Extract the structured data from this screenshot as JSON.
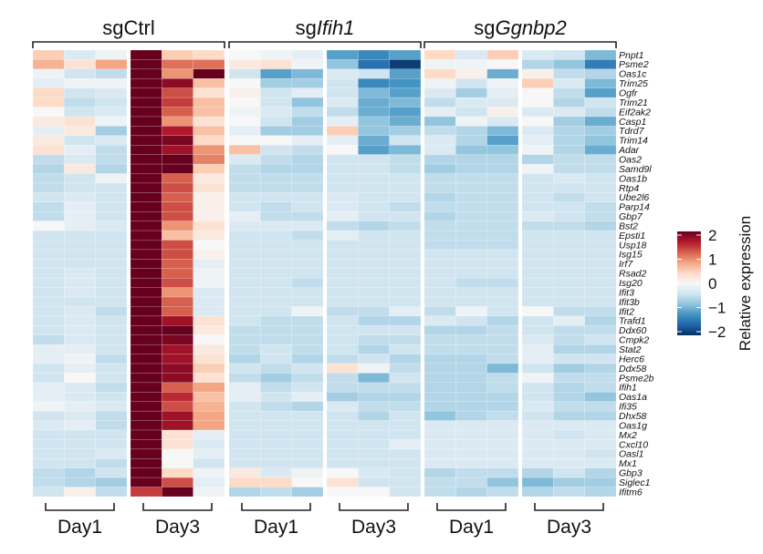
{
  "chart_data": {
    "type": "heatmap",
    "colorbar": {
      "title": "Relative expression",
      "range": [
        -2,
        2
      ],
      "ticks": [
        "2",
        "1",
        "0",
        "−1",
        "−2"
      ],
      "tick_values": [
        2,
        1,
        0,
        -1,
        -2
      ],
      "palette": [
        "#053061",
        "#2166ac",
        "#4393c3",
        "#92c5de",
        "#d1e5f0",
        "#f7f7f7",
        "#fddbc7",
        "#f4a582",
        "#d6604d",
        "#b2182b",
        "#67001f"
      ]
    },
    "groups": [
      {
        "prefix": "sg",
        "name": "Ctrl",
        "italic": false
      },
      {
        "prefix": "sg",
        "name": "Ifih1",
        "italic": true
      },
      {
        "prefix": "sg",
        "name": "Ggnbp2",
        "italic": true
      }
    ],
    "days": [
      "Day1",
      "Day3",
      "Day1",
      "Day3",
      "Day1",
      "Day3"
    ],
    "replicates_per_day": 3,
    "genes": [
      "Pnpt1",
      "Psme2",
      "Oas1c",
      "Trim25",
      "Ogfr",
      "Trim21",
      "Eif2ak2",
      "Casp1",
      "Tdrd7",
      "Trim14",
      "Adar",
      "Oas2",
      "Samd9l",
      "Oas1b",
      "Rtp4",
      "Ube2l6",
      "Parp14",
      "Gbp7",
      "Bst2",
      "Epsti1",
      "Usp18",
      "Isg15",
      "Irf7",
      "Rsad2",
      "Isg20",
      "Ifit3",
      "Ifit3b",
      "Ifit2",
      "Trafd1",
      "Ddx60",
      "Cmpk2",
      "Stat2",
      "Herc6",
      "Ddx58",
      "Psme2b",
      "Ifih1",
      "Oas1a",
      "Ifi35",
      "Dhx58",
      "Oas1g",
      "Mx2",
      "Cxcl10",
      "Oasl1",
      "Mx1",
      "Gbp3",
      "Siglec1",
      "Ifitm6"
    ],
    "values": [
      [
        0.5,
        -0.3,
        -0.1,
        2,
        0.5,
        0.4,
        0.0,
        -0.1,
        -0.2,
        -1.1,
        -1.3,
        -1.1,
        0.4,
        -0.3,
        0.5,
        -0.3,
        -0.4,
        -0.9
      ],
      [
        0.7,
        0.3,
        0.8,
        2,
        1.1,
        1.1,
        0.2,
        0.3,
        -0.1,
        -0.8,
        -1.5,
        -1.9,
        -0.1,
        -0.1,
        0.0,
        -0.6,
        -0.8,
        -1.4
      ],
      [
        -0.1,
        -0.4,
        -0.5,
        2,
        0.9,
        2,
        -0.4,
        -1.1,
        -0.9,
        -0.3,
        -0.4,
        -1.1,
        0.4,
        0.1,
        -1.0,
        0.1,
        -0.5,
        -0.6
      ],
      [
        -0.2,
        -0.1,
        -0.1,
        2,
        1.8,
        0.6,
        0.0,
        -0.7,
        -0.7,
        -0.4,
        -1.3,
        -1.2,
        -0.1,
        -0.4,
        -0.1,
        0.5,
        -0.3,
        -0.9
      ],
      [
        0.4,
        -0.4,
        -0.3,
        2,
        1.3,
        0.3,
        0.1,
        -0.4,
        -0.2,
        -0.4,
        -0.9,
        -1.1,
        -0.3,
        -0.7,
        -0.2,
        0.0,
        -0.5,
        -1.1
      ],
      [
        0.4,
        -0.5,
        -0.4,
        2,
        1.4,
        0.6,
        0.0,
        -0.4,
        -0.8,
        -0.3,
        -1.0,
        -0.9,
        -0.5,
        -0.3,
        -0.3,
        0.0,
        -0.6,
        -0.4
      ],
      [
        0.0,
        -0.4,
        -0.3,
        2,
        1.2,
        0.6,
        -0.1,
        -0.3,
        -0.5,
        -0.5,
        -1.0,
        -1.1,
        -0.2,
        -0.4,
        0.1,
        -0.3,
        -0.3,
        -0.5
      ],
      [
        0.2,
        0.3,
        -0.1,
        2,
        0.9,
        0.3,
        0.0,
        -0.4,
        -0.7,
        -0.2,
        -0.8,
        -1.0,
        -0.8,
        -0.1,
        -0.3,
        0.0,
        -0.7,
        -1.0
      ],
      [
        -0.2,
        0.2,
        -0.7,
        2,
        1.6,
        0.6,
        -0.2,
        -0.7,
        -0.7,
        0.5,
        -0.8,
        -0.7,
        -0.5,
        -0.6,
        -0.9,
        -0.3,
        -0.6,
        -0.7
      ],
      [
        0.2,
        -0.4,
        -0.3,
        2,
        1.9,
        0.4,
        0.0,
        0.0,
        -0.2,
        -0.2,
        -1.0,
        -0.4,
        -0.3,
        -0.6,
        -1.1,
        -0.2,
        -0.6,
        -0.8
      ],
      [
        0.3,
        -0.2,
        -0.5,
        2,
        1.7,
        0.9,
        0.6,
        -0.4,
        -0.5,
        0.0,
        -1.1,
        -0.9,
        -0.3,
        -0.8,
        -0.8,
        -0.1,
        -0.6,
        -1.0
      ],
      [
        -0.5,
        -0.3,
        -0.5,
        2,
        2,
        1.0,
        -0.3,
        -0.5,
        -0.6,
        -0.4,
        -0.4,
        -0.5,
        -0.6,
        -0.6,
        -0.6,
        -0.6,
        -0.5,
        -0.5
      ],
      [
        -0.6,
        0.2,
        -0.6,
        2,
        2,
        0.5,
        -0.5,
        -0.6,
        -0.6,
        -0.4,
        -0.4,
        -0.5,
        -0.7,
        -0.6,
        -0.6,
        -0.1,
        -0.5,
        -0.5
      ],
      [
        -0.5,
        -0.4,
        -0.1,
        2,
        1.2,
        0.2,
        -0.5,
        -0.5,
        -0.5,
        -0.4,
        -0.4,
        -0.4,
        -0.5,
        -0.5,
        -0.5,
        -0.4,
        -0.3,
        -0.4
      ],
      [
        -0.5,
        -0.4,
        -0.4,
        2,
        1.3,
        0.3,
        -0.5,
        -0.5,
        -0.5,
        -0.4,
        -0.4,
        -0.4,
        -0.5,
        -0.5,
        -0.5,
        -0.4,
        -0.4,
        -0.4
      ],
      [
        -0.4,
        -0.3,
        -0.4,
        2,
        1.2,
        0.1,
        -0.4,
        -0.4,
        -0.4,
        -0.3,
        -0.4,
        -0.4,
        -0.6,
        -0.5,
        -0.5,
        -0.4,
        -0.5,
        -0.4
      ],
      [
        -0.5,
        -0.2,
        -0.4,
        2,
        1.3,
        0.1,
        -0.4,
        -0.5,
        -0.4,
        -0.3,
        -0.4,
        -0.5,
        -0.5,
        -0.5,
        -0.5,
        -0.4,
        -0.4,
        -0.5
      ],
      [
        -0.5,
        -0.2,
        -0.4,
        2,
        1.3,
        0.1,
        -0.2,
        -0.5,
        -0.5,
        -0.2,
        -0.4,
        -0.4,
        -0.6,
        -0.5,
        -0.5,
        -0.3,
        -0.4,
        -0.5
      ],
      [
        0.0,
        -0.2,
        -0.3,
        2,
        0.9,
        0.3,
        -0.3,
        -0.3,
        -0.3,
        -0.5,
        -0.6,
        -0.5,
        -0.5,
        -0.5,
        -0.5,
        -0.5,
        -0.5,
        -0.6
      ],
      [
        -0.4,
        -0.4,
        -0.4,
        2,
        0.6,
        0.2,
        -0.4,
        -0.4,
        -0.5,
        -0.2,
        -0.4,
        -0.4,
        -0.5,
        -0.5,
        -0.5,
        -0.4,
        -0.4,
        -0.4
      ],
      [
        -0.4,
        -0.4,
        -0.4,
        2,
        1.3,
        0.0,
        -0.4,
        -0.4,
        -0.4,
        -0.4,
        -0.4,
        -0.4,
        -0.5,
        -0.5,
        -0.5,
        -0.4,
        -0.4,
        -0.4
      ],
      [
        -0.4,
        -0.4,
        -0.4,
        2,
        1.3,
        0.1,
        -0.4,
        -0.4,
        -0.4,
        -0.4,
        -0.4,
        -0.4,
        -0.4,
        -0.4,
        -0.4,
        -0.4,
        -0.4,
        -0.4
      ],
      [
        -0.4,
        -0.4,
        -0.4,
        2,
        1.2,
        -0.2,
        -0.4,
        -0.4,
        -0.4,
        -0.4,
        -0.4,
        -0.4,
        -0.4,
        -0.4,
        -0.4,
        -0.4,
        -0.4,
        -0.4
      ],
      [
        -0.4,
        -0.3,
        -0.4,
        2,
        1.2,
        -0.1,
        -0.4,
        -0.4,
        -0.4,
        -0.4,
        -0.4,
        -0.4,
        -0.4,
        -0.4,
        -0.4,
        -0.4,
        -0.4,
        -0.4
      ],
      [
        -0.4,
        -0.3,
        -0.4,
        2,
        1.3,
        -0.1,
        -0.4,
        -0.4,
        -0.5,
        -0.4,
        -0.4,
        -0.4,
        -0.4,
        -0.5,
        -0.5,
        -0.4,
        -0.4,
        -0.4
      ],
      [
        -0.4,
        -0.3,
        -0.4,
        2,
        0.9,
        -0.3,
        -0.4,
        -0.4,
        -0.4,
        -0.4,
        -0.4,
        -0.4,
        -0.4,
        -0.4,
        -0.4,
        -0.4,
        -0.4,
        -0.4
      ],
      [
        -0.4,
        -0.4,
        -0.4,
        2,
        1.2,
        -0.3,
        -0.4,
        -0.4,
        -0.4,
        -0.4,
        -0.4,
        -0.4,
        -0.4,
        -0.4,
        -0.4,
        -0.4,
        -0.4,
        -0.4
      ],
      [
        -0.4,
        -0.3,
        -0.5,
        2,
        1.2,
        -0.3,
        -0.4,
        -0.4,
        -0.1,
        -0.5,
        -0.5,
        -0.2,
        -0.5,
        -0.1,
        -0.4,
        0.0,
        -0.5,
        -0.5
      ],
      [
        -0.4,
        -0.3,
        -0.4,
        2,
        1.7,
        0.3,
        -0.4,
        -0.5,
        -0.5,
        -0.4,
        -0.6,
        -0.6,
        -0.3,
        -0.4,
        -0.6,
        -0.4,
        -0.2,
        -0.6
      ],
      [
        -0.4,
        -0.3,
        -0.4,
        2,
        2,
        0.2,
        -0.5,
        -0.5,
        -0.5,
        -0.4,
        -0.4,
        -0.4,
        -0.6,
        -0.6,
        -0.5,
        -0.4,
        -0.5,
        -0.5
      ],
      [
        -0.5,
        -0.3,
        -0.4,
        2,
        1.9,
        0.0,
        -0.5,
        -0.5,
        -0.5,
        -0.4,
        -0.5,
        -0.5,
        -0.5,
        -0.5,
        -0.5,
        -0.3,
        -0.5,
        -0.4
      ],
      [
        -0.2,
        -0.2,
        -0.4,
        2,
        1.7,
        0.2,
        -0.5,
        -0.4,
        -0.5,
        -0.4,
        -0.6,
        -0.4,
        -0.5,
        -0.5,
        -0.5,
        -0.2,
        -0.6,
        -0.6
      ],
      [
        -0.2,
        -0.1,
        -0.5,
        2,
        1.7,
        0.3,
        -0.6,
        -0.4,
        -0.6,
        -0.5,
        -0.4,
        -0.6,
        -0.6,
        -0.6,
        -0.5,
        -0.2,
        -0.4,
        -0.4
      ],
      [
        -0.4,
        -0.2,
        -0.4,
        2,
        1.8,
        0.5,
        -0.4,
        -0.5,
        -0.4,
        0.3,
        -0.1,
        -0.5,
        -0.6,
        -0.6,
        -0.9,
        -0.4,
        -0.7,
        -0.6
      ],
      [
        -0.4,
        0.0,
        -0.4,
        2,
        1.8,
        0.3,
        -0.5,
        -0.7,
        -0.5,
        -0.5,
        -0.9,
        -0.4,
        -0.6,
        -0.6,
        -0.5,
        -0.1,
        -0.5,
        -0.5
      ],
      [
        -0.2,
        -0.3,
        -0.5,
        2,
        1.2,
        0.8,
        -0.2,
        -0.5,
        -0.4,
        -0.5,
        -0.5,
        -0.5,
        -0.6,
        -0.6,
        -0.5,
        -0.4,
        -0.6,
        -0.5
      ],
      [
        -0.2,
        -0.3,
        -0.4,
        2,
        1.5,
        0.6,
        -0.2,
        -0.4,
        -0.2,
        -0.7,
        -0.6,
        -0.6,
        -0.6,
        -0.6,
        -0.6,
        -0.4,
        -0.6,
        -0.8
      ],
      [
        -0.1,
        -0.2,
        -0.3,
        2,
        1.3,
        0.7,
        -0.4,
        -0.5,
        -0.6,
        -0.3,
        -0.5,
        -0.5,
        -0.6,
        -0.6,
        -0.6,
        -0.3,
        -0.5,
        -0.5
      ],
      [
        -0.4,
        -0.3,
        -0.5,
        2,
        1.7,
        0.8,
        -0.4,
        -0.4,
        -0.4,
        -0.4,
        -0.6,
        -0.4,
        -0.8,
        -0.6,
        -0.5,
        -0.4,
        -0.6,
        -0.6
      ],
      [
        -0.3,
        -0.2,
        -0.5,
        2,
        1.7,
        0.8,
        -0.4,
        -0.4,
        -0.4,
        -0.4,
        -0.4,
        -0.4,
        -0.3,
        -0.3,
        -0.3,
        -0.3,
        -0.3,
        -0.3
      ],
      [
        -0.4,
        -0.4,
        -0.4,
        2,
        0.3,
        -0.2,
        -0.4,
        -0.4,
        -0.4,
        -0.4,
        -0.4,
        -0.4,
        -0.3,
        -0.3,
        -0.3,
        -0.3,
        -0.4,
        -0.3
      ],
      [
        -0.4,
        -0.4,
        -0.4,
        2,
        0.3,
        -0.3,
        -0.4,
        -0.4,
        -0.4,
        -0.4,
        -0.4,
        -0.2,
        -0.3,
        -0.3,
        -0.3,
        -0.3,
        -0.3,
        -0.3
      ],
      [
        -0.4,
        -0.4,
        -0.3,
        2,
        0.0,
        -0.2,
        -0.4,
        -0.4,
        -0.4,
        -0.4,
        -0.4,
        -0.4,
        -0.3,
        -0.3,
        -0.3,
        -0.3,
        -0.3,
        -0.4
      ],
      [
        -0.4,
        -0.4,
        -0.5,
        2,
        0.0,
        -0.4,
        -0.4,
        -0.4,
        -0.4,
        -0.4,
        -0.4,
        -0.4,
        -0.3,
        -0.3,
        -0.3,
        -0.3,
        -0.3,
        -0.3
      ],
      [
        -0.5,
        -0.6,
        -0.4,
        2,
        0.4,
        -0.1,
        0.2,
        -0.3,
        -0.1,
        0.0,
        -0.3,
        -0.4,
        -0.6,
        -0.5,
        -0.5,
        -0.6,
        -0.4,
        -0.6
      ],
      [
        -0.5,
        -0.6,
        -0.7,
        2,
        1.3,
        -0.2,
        0.4,
        0.4,
        0.0,
        0.3,
        -0.4,
        -0.4,
        -0.5,
        -0.5,
        -0.8,
        -0.9,
        -0.7,
        -0.7
      ],
      [
        -0.4,
        0.1,
        -0.5,
        1.4,
        2,
        -0.1,
        -0.6,
        -0.5,
        -0.7,
        0.0,
        0.0,
        -0.4,
        -0.5,
        -0.6,
        -0.5,
        -0.6,
        -0.5,
        -0.6
      ]
    ]
  }
}
